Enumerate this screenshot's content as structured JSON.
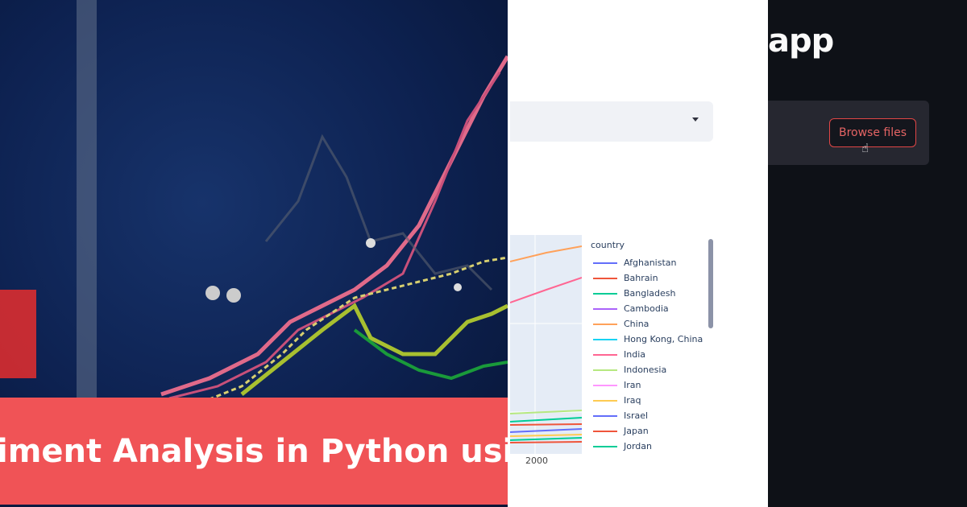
{
  "banner": {
    "text": "iment Analysis in Python usin"
  },
  "app": {
    "title": "pp",
    "browse_label": "Browse files"
  },
  "select": {
    "icon": "caret-down-icon"
  },
  "chart": {
    "x_tick": "2000",
    "legend_title": "country",
    "legend": [
      {
        "name": "Afghanistan",
        "color": "#636efa"
      },
      {
        "name": "Bahrain",
        "color": "#ef553b"
      },
      {
        "name": "Bangladesh",
        "color": "#00cc96"
      },
      {
        "name": "Cambodia",
        "color": "#ab63fa"
      },
      {
        "name": "China",
        "color": "#ffa15a"
      },
      {
        "name": "Hong Kong, China",
        "color": "#19d3f3"
      },
      {
        "name": "India",
        "color": "#ff6692"
      },
      {
        "name": "Indonesia",
        "color": "#b6e880"
      },
      {
        "name": "Iran",
        "color": "#ff97ff"
      },
      {
        "name": "Iraq",
        "color": "#fecb52"
      },
      {
        "name": "Israel",
        "color": "#636efa"
      },
      {
        "name": "Japan",
        "color": "#ef553b"
      },
      {
        "name": "Jordan",
        "color": "#00cc96"
      }
    ]
  }
}
